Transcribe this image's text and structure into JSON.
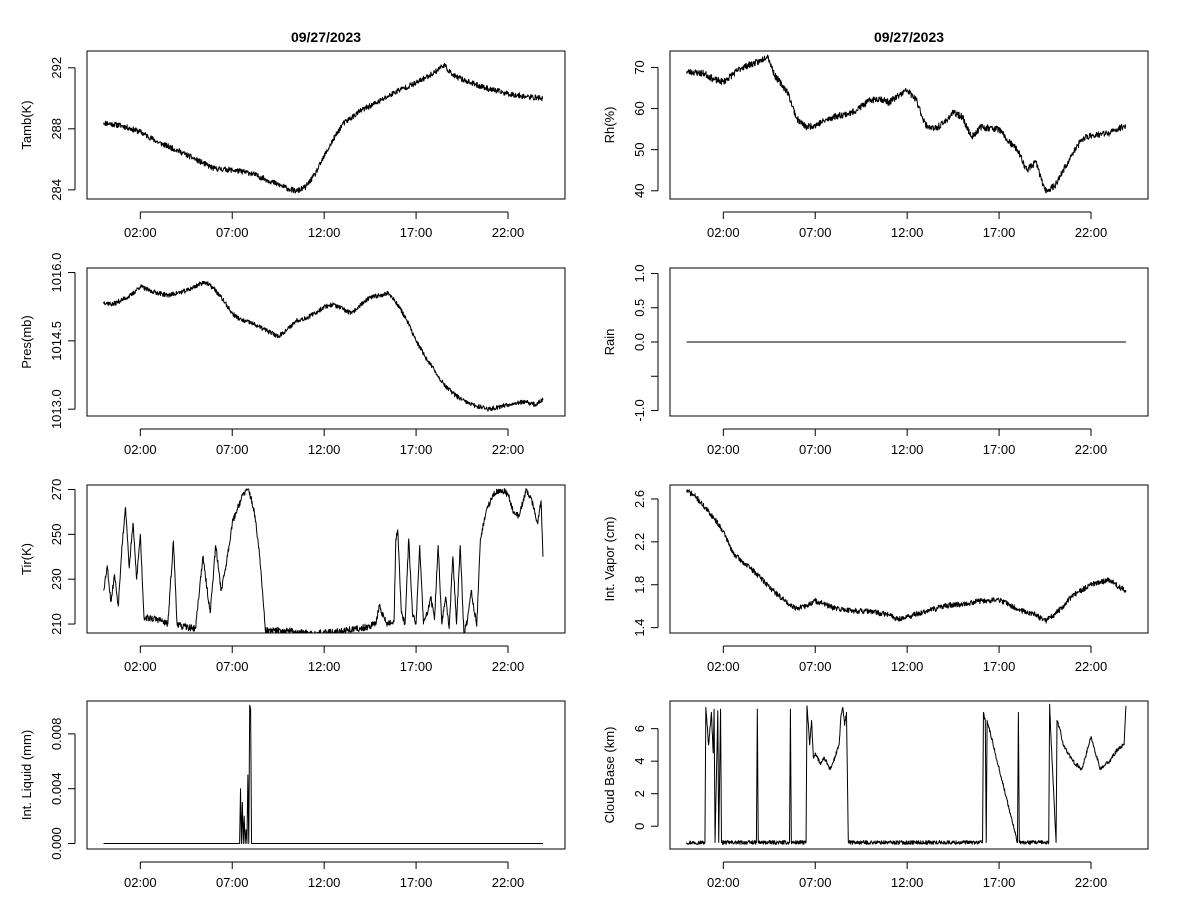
{
  "figure": {
    "background": "#ffffff",
    "line_color": "#000000"
  },
  "chart_data": [
    {
      "id": "tamb",
      "type": "line",
      "title": "09/27/2023",
      "ylabel": "Tamb(K)",
      "xlabel": "",
      "xlim": [
        -0.9,
        25.1
      ],
      "ylim": [
        283.4,
        293.1
      ],
      "yticks": [
        284,
        288,
        292
      ],
      "ytick_labels": [
        "284",
        "288",
        "292"
      ],
      "xticks": [
        2,
        7,
        12,
        17,
        22
      ],
      "xtick_labels": [
        "02:00",
        "07:00",
        "12:00",
        "17:00",
        "22:00"
      ],
      "series": [
        {
          "name": "Tamb",
          "noise": 0.18,
          "seed": 11,
          "x": [
            0,
            0.5,
            1,
            2,
            3,
            4,
            5,
            6,
            7,
            8,
            9,
            10,
            10.5,
            11,
            11.5,
            12,
            12.5,
            13,
            14,
            15,
            16,
            17,
            18,
            18.5,
            19,
            20,
            21,
            22,
            23,
            23.9
          ],
          "y": [
            288.4,
            288.3,
            288.2,
            287.8,
            287.1,
            286.6,
            286.0,
            285.4,
            285.3,
            285.1,
            284.6,
            284.1,
            283.9,
            284.2,
            285.0,
            286.2,
            287.3,
            288.3,
            289.2,
            289.8,
            290.5,
            291.0,
            291.7,
            292.2,
            291.5,
            291.0,
            290.6,
            290.3,
            290.1,
            290.0
          ]
        }
      ]
    },
    {
      "id": "rh",
      "type": "line",
      "title": "09/27/2023",
      "ylabel": "Rh(%)",
      "xlabel": "",
      "xlim": [
        -0.9,
        25.1
      ],
      "ylim": [
        38,
        74
      ],
      "yticks": [
        40,
        50,
        60,
        70
      ],
      "ytick_labels": [
        "40",
        "50",
        "60",
        "70"
      ],
      "xticks": [
        2,
        7,
        12,
        17,
        22
      ],
      "xtick_labels": [
        "02:00",
        "07:00",
        "12:00",
        "17:00",
        "22:00"
      ],
      "series": [
        {
          "name": "Rh",
          "noise": 0.8,
          "seed": 23,
          "x": [
            0,
            1,
            1.5,
            2,
            3,
            4,
            4.4,
            4.8,
            5.5,
            6,
            6.5,
            7,
            8,
            9,
            10,
            10.5,
            11,
            12,
            12.5,
            13,
            13.5,
            14,
            14.5,
            15,
            15.5,
            16,
            17,
            17.5,
            18,
            18.5,
            19,
            19.5,
            20,
            21,
            21.5,
            22,
            23,
            23.9
          ],
          "y": [
            69,
            68.5,
            67,
            66.5,
            70,
            71.5,
            73,
            68,
            64,
            57.5,
            55.5,
            56,
            58,
            59,
            62,
            62.5,
            61.5,
            64.5,
            62,
            56,
            55,
            56.5,
            59,
            58,
            53,
            55.5,
            55,
            52,
            50,
            45,
            47,
            40,
            41,
            49,
            52.5,
            53.5,
            54,
            56
          ]
        }
      ]
    },
    {
      "id": "pres",
      "type": "line",
      "title": "",
      "ylabel": "Pres(mb)",
      "xlabel": "",
      "xlim": [
        -0.9,
        25.1
      ],
      "ylim": [
        1012.85,
        1016.1
      ],
      "yticks": [
        1013.0,
        1014.5,
        1016.0
      ],
      "ytick_labels": [
        "1013.0",
        "1014.5",
        "1016.0"
      ],
      "xticks": [
        2,
        7,
        12,
        17,
        22
      ],
      "xtick_labels": [
        "02:00",
        "07:00",
        "12:00",
        "17:00",
        "22:00"
      ],
      "series": [
        {
          "name": "Pres",
          "noise": 0.05,
          "seed": 37,
          "x": [
            0,
            0.5,
            1,
            1.5,
            2,
            2.5,
            3,
            3.5,
            4,
            4.5,
            5,
            5.5,
            6,
            6.5,
            7,
            7.5,
            8,
            8.5,
            9,
            9.5,
            10,
            10.5,
            11,
            11.5,
            12,
            12.5,
            13,
            13.5,
            14,
            14.5,
            15,
            15.5,
            16,
            16.5,
            17,
            17.5,
            18,
            18.5,
            19,
            19.5,
            20,
            20.5,
            21,
            21.5,
            22,
            22.5,
            23,
            23.5,
            23.9
          ],
          "y": [
            1015.35,
            1015.3,
            1015.4,
            1015.5,
            1015.7,
            1015.6,
            1015.55,
            1015.5,
            1015.55,
            1015.6,
            1015.7,
            1015.8,
            1015.65,
            1015.4,
            1015.1,
            1014.95,
            1014.9,
            1014.8,
            1014.7,
            1014.6,
            1014.75,
            1014.95,
            1015.0,
            1015.1,
            1015.25,
            1015.3,
            1015.2,
            1015.1,
            1015.3,
            1015.45,
            1015.5,
            1015.55,
            1015.3,
            1014.95,
            1014.5,
            1014.15,
            1013.85,
            1013.55,
            1013.35,
            1013.2,
            1013.1,
            1013.05,
            1013.0,
            1013.05,
            1013.1,
            1013.15,
            1013.15,
            1013.1,
            1013.2
          ]
        }
      ]
    },
    {
      "id": "rain",
      "type": "line",
      "title": "",
      "ylabel": "Rain",
      "xlabel": "",
      "xlim": [
        -0.9,
        25.1
      ],
      "ylim": [
        -1.08,
        1.08
      ],
      "yticks": [
        -1.0,
        -0.5,
        0.0,
        0.5,
        1.0
      ],
      "ytick_labels": [
        "-1.0",
        "",
        "0.0",
        "0.5",
        "1.0"
      ],
      "xticks": [
        2,
        7,
        12,
        17,
        22
      ],
      "xtick_labels": [
        "02:00",
        "07:00",
        "12:00",
        "17:00",
        "22:00"
      ],
      "series": [
        {
          "name": "Rain",
          "noise": 0,
          "seed": 1,
          "x": [
            0,
            23.9
          ],
          "y": [
            0,
            0
          ]
        }
      ]
    },
    {
      "id": "tir",
      "type": "line",
      "title": "",
      "ylabel": "Tir(K)",
      "xlabel": "",
      "xlim": [
        -0.9,
        25.1
      ],
      "ylim": [
        206,
        272
      ],
      "yticks": [
        210,
        230,
        250,
        270
      ],
      "ytick_labels": [
        "210",
        "230",
        "250",
        "270"
      ],
      "xticks": [
        2,
        7,
        12,
        17,
        22
      ],
      "xtick_labels": [
        "02:00",
        "07:00",
        "12:00",
        "17:00",
        "22:00"
      ],
      "series": [
        {
          "name": "Tir",
          "noise": 1.5,
          "seed": 53,
          "x": [
            0,
            0.2,
            0.4,
            0.6,
            0.8,
            1.0,
            1.2,
            1.4,
            1.6,
            1.8,
            2.0,
            2.2,
            3.0,
            3.5,
            3.8,
            4.0,
            4.2,
            5.0,
            5.4,
            5.8,
            6.1,
            6.4,
            6.7,
            7.0,
            7.3,
            7.6,
            7.9,
            8.2,
            8.5,
            8.8,
            9.5,
            10,
            11,
            12,
            13,
            14,
            14.8,
            15,
            15.4,
            15.8,
            15.9,
            16.0,
            16.2,
            16.4,
            16.6,
            16.8,
            17.0,
            17.2,
            17.4,
            17.6,
            17.8,
            18.0,
            18.2,
            18.4,
            18.6,
            18.8,
            19.0,
            19.2,
            19.4,
            19.6,
            19.8,
            20.0,
            20.3,
            20.5,
            20.8,
            21.2,
            21.6,
            22.0,
            22.3,
            22.6,
            23.0,
            23.3,
            23.6,
            23.8,
            23.9
          ],
          "y": [
            225,
            236,
            220,
            232,
            218,
            245,
            262,
            235,
            255,
            230,
            250,
            213,
            212,
            210,
            247,
            210,
            209,
            208,
            240,
            215,
            245,
            225,
            238,
            255,
            262,
            268,
            270,
            260,
            240,
            207,
            207,
            207,
            206,
            206,
            207,
            208,
            210,
            218,
            210,
            211,
            248,
            252,
            215,
            210,
            248,
            215,
            210,
            245,
            210,
            215,
            222,
            212,
            245,
            210,
            222,
            208,
            240,
            210,
            245,
            206,
            212,
            225,
            209,
            248,
            260,
            268,
            270,
            268,
            260,
            258,
            270,
            265,
            255,
            265,
            240
          ]
        }
      ]
    },
    {
      "id": "vapor",
      "type": "line",
      "title": "",
      "ylabel": "Int. Vapor (cm)",
      "xlabel": "",
      "xlim": [
        -0.9,
        25.1
      ],
      "ylim": [
        1.35,
        2.73
      ],
      "yticks": [
        1.4,
        1.8,
        2.2,
        2.6
      ],
      "ytick_labels": [
        "1.4",
        "1.8",
        "2.2",
        "2.6"
      ],
      "xticks": [
        2,
        7,
        12,
        17,
        22
      ],
      "xtick_labels": [
        "02:00",
        "07:00",
        "12:00",
        "17:00",
        "22:00"
      ],
      "series": [
        {
          "name": "Vapor",
          "noise": 0.025,
          "seed": 71,
          "x": [
            0,
            0.5,
            1,
            1.5,
            2,
            2.5,
            3,
            3.5,
            4,
            4.5,
            5,
            5.5,
            6,
            6.5,
            7,
            7.5,
            8,
            9,
            10,
            11,
            11.5,
            12,
            13,
            14,
            15,
            16,
            17,
            17.5,
            18,
            19,
            19.5,
            20,
            20.5,
            21,
            21.5,
            22,
            22.5,
            23,
            23.5,
            23.9
          ],
          "y": [
            2.68,
            2.62,
            2.52,
            2.42,
            2.3,
            2.1,
            2.02,
            1.95,
            1.87,
            1.78,
            1.7,
            1.63,
            1.58,
            1.6,
            1.65,
            1.62,
            1.58,
            1.56,
            1.55,
            1.52,
            1.48,
            1.5,
            1.55,
            1.6,
            1.62,
            1.65,
            1.66,
            1.62,
            1.57,
            1.52,
            1.46,
            1.52,
            1.6,
            1.7,
            1.75,
            1.8,
            1.82,
            1.85,
            1.78,
            1.75
          ]
        }
      ]
    },
    {
      "id": "liquid",
      "type": "line",
      "title": "",
      "ylabel": "Int. Liquid (mm)",
      "xlabel": "",
      "xlim": [
        -0.9,
        25.1
      ],
      "ylim": [
        -0.0004,
        0.0104
      ],
      "yticks": [
        0.0,
        0.004,
        0.008
      ],
      "ytick_labels": [
        "0.000",
        "0.004",
        "0.008"
      ],
      "xticks": [
        2,
        7,
        12,
        17,
        22
      ],
      "xtick_labels": [
        "02:00",
        "07:00",
        "12:00",
        "17:00",
        "22:00"
      ],
      "series": [
        {
          "name": "Liquid",
          "noise": 0,
          "seed": 1,
          "x": [
            0,
            7.4,
            7.45,
            7.5,
            7.55,
            7.6,
            7.65,
            7.7,
            7.75,
            7.8,
            7.85,
            7.9,
            7.95,
            8.0,
            8.05,
            23.9
          ],
          "y": [
            0,
            0,
            0.004,
            0,
            0.003,
            0,
            0.002,
            0,
            0.001,
            0,
            0.005,
            0,
            0.0101,
            0.0098,
            0,
            0
          ]
        }
      ]
    },
    {
      "id": "cloudbase",
      "type": "line",
      "title": "",
      "ylabel": "Cloud Base (km)",
      "xlabel": "",
      "xlim": [
        -0.9,
        25.1
      ],
      "ylim": [
        -1.4,
        7.7
      ],
      "yticks": [
        0,
        2,
        4,
        6
      ],
      "ytick_labels": [
        "0",
        "2",
        "4",
        "6"
      ],
      "xticks": [
        2,
        7,
        12,
        17,
        22
      ],
      "xtick_labels": [
        "02:00",
        "07:00",
        "12:00",
        "17:00",
        "22:00"
      ],
      "series": [
        {
          "name": "CloudBase",
          "noise": 0.12,
          "seed": 97,
          "x": [
            0,
            1.0,
            1.05,
            1.2,
            1.35,
            1.45,
            1.5,
            1.55,
            1.7,
            1.75,
            1.85,
            1.9,
            3.8,
            3.85,
            3.9,
            5.6,
            5.65,
            5.7,
            6.5,
            6.55,
            6.7,
            6.8,
            6.9,
            7.0,
            7.3,
            7.5,
            7.8,
            8.0,
            8.3,
            8.4,
            8.5,
            8.6,
            8.7,
            8.8,
            16.1,
            16.15,
            16.25,
            16.3,
            16.35,
            18.0,
            18.05,
            18.1,
            19.7,
            19.75,
            19.8,
            20.1,
            20.15,
            20.3,
            20.5,
            21.0,
            21.5,
            22.0,
            22.5,
            23.0,
            23.5,
            23.8,
            23.9
          ],
          "y": [
            -1,
            -1,
            7.3,
            5,
            7,
            4.5,
            7.2,
            -1,
            7.1,
            -1,
            7.2,
            -1,
            -1,
            7.2,
            -1,
            -1,
            7.2,
            -1,
            -1,
            7.4,
            5,
            6.5,
            4.2,
            4.5,
            3.8,
            4.2,
            3.5,
            4,
            5,
            6.8,
            7.3,
            6.2,
            7,
            -1,
            -1,
            7,
            6.5,
            -1,
            6.5,
            -1,
            7,
            -1,
            -1,
            7.5,
            6,
            -1,
            6.5,
            6,
            5,
            4,
            3.5,
            5.5,
            3.5,
            4,
            4.8,
            5,
            7.4
          ]
        }
      ]
    }
  ]
}
